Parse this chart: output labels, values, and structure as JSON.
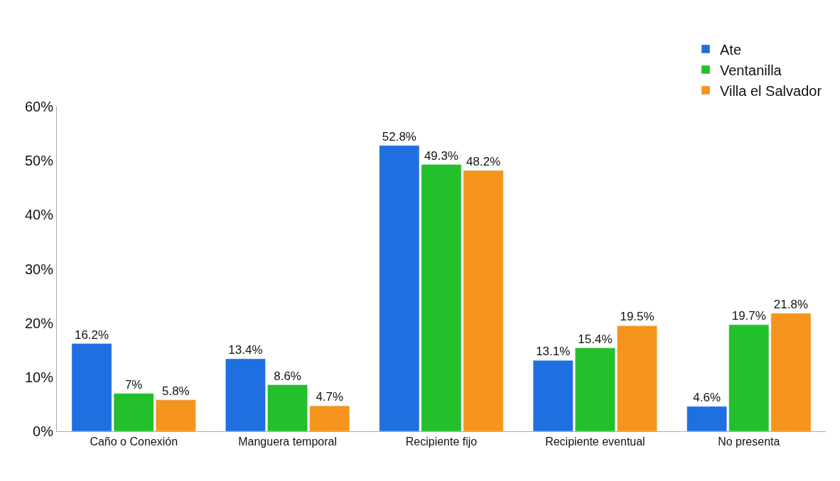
{
  "chart_data": {
    "type": "bar",
    "categories": [
      "Caño o Conexión",
      "Manguera temporal",
      "Recipiente fijo",
      "Recipiente eventual",
      "No presenta"
    ],
    "series": [
      {
        "name": "Ate",
        "color": "#1f6fe0",
        "values": [
          16.2,
          13.4,
          52.8,
          13.1,
          4.6
        ],
        "value_labels": [
          "16.2%",
          "13.4%",
          "52.8%",
          "13.1%",
          "4.6%"
        ]
      },
      {
        "name": "Ventanilla",
        "color": "#22c02a",
        "values": [
          7,
          8.6,
          49.3,
          15.4,
          19.7
        ],
        "value_labels": [
          "7%",
          "8.6%",
          "49.3%",
          "15.4%",
          "19.7%"
        ]
      },
      {
        "name": "Villa el Salvador",
        "color": "#f7941d",
        "values": [
          5.8,
          4.7,
          48.2,
          19.5,
          21.8
        ],
        "value_labels": [
          "5.8%",
          "4.7%",
          "48.2%",
          "19.5%",
          "21.8%"
        ]
      }
    ],
    "ylim": [
      0,
      60
    ],
    "yticks": [
      {
        "value": 0,
        "label": "0%"
      },
      {
        "value": 10,
        "label": "10%"
      },
      {
        "value": 20,
        "label": "20%"
      },
      {
        "value": 30,
        "label": "30%"
      },
      {
        "value": 40,
        "label": "40%"
      },
      {
        "value": 50,
        "label": "50%"
      },
      {
        "value": 60,
        "label": "60%"
      }
    ],
    "legend": "top right"
  }
}
